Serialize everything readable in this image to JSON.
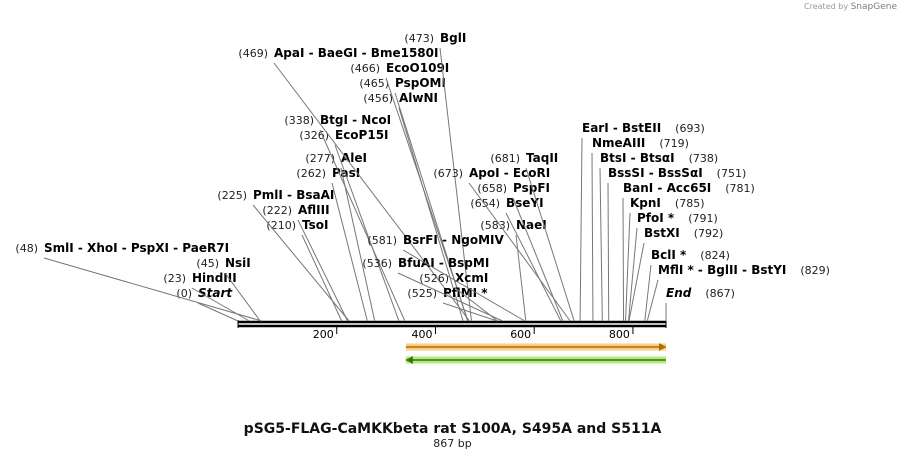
{
  "credit": {
    "prefix": "Created by",
    "brand": "SnapGene"
  },
  "title": "pSG5-FLAG-CaMKKbeta rat S100A, S495A and S511A",
  "length_label": "867 bp",
  "colors": {
    "feature_orange": "#f5a623",
    "feature_orange_edge": "#b06d00",
    "feature_green": "#7ed321",
    "feature_green_edge": "#2f7a00",
    "line": "#000000",
    "leader": "#777777"
  },
  "sequence": {
    "start": 0,
    "end": 867,
    "ticks": [
      200,
      400,
      600,
      800
    ]
  },
  "features": [
    {
      "name": "feature-forward-orange",
      "start": 340,
      "end": 867,
      "direction": "forward",
      "color": "#f5a623"
    },
    {
      "name": "feature-reverse-green",
      "start": 340,
      "end": 867,
      "direction": "reverse",
      "color": "#7ed321"
    }
  ],
  "sites": [
    {
      "pos": "(0)",
      "text": "Start",
      "bp": 0,
      "italic": true
    },
    {
      "pos": "(23)",
      "text": "HindIII",
      "bp": 23
    },
    {
      "pos": "(45)",
      "text": "NsiI",
      "bp": 45
    },
    {
      "pos": "(48)",
      "text": "SmlI  - XhoI  - PspXI  - PaeR7I",
      "bp": 48
    },
    {
      "pos": "(210)",
      "text": "TsoI",
      "bp": 210
    },
    {
      "pos": "(222)",
      "text": "AflIII",
      "bp": 222
    },
    {
      "pos": "(225)",
      "text": "PmlI  - BsaAI",
      "bp": 225
    },
    {
      "pos": "(262)",
      "text": "PasI",
      "bp": 262
    },
    {
      "pos": "(277)",
      "text": "AleI",
      "bp": 277
    },
    {
      "pos": "(326)",
      "text": "EcoP15I",
      "bp": 326
    },
    {
      "pos": "(338)",
      "text": "BtgI  - NcoI",
      "bp": 338
    },
    {
      "pos": "(456)",
      "text": "AlwNI",
      "bp": 456
    },
    {
      "pos": "(465)",
      "text": "PspOMI",
      "bp": 465
    },
    {
      "pos": "(466)",
      "text": "EcoO109I",
      "bp": 466
    },
    {
      "pos": "(469)",
      "text": "ApaI  - BaeGI  - Bme1580I",
      "bp": 469
    },
    {
      "pos": "(473)",
      "text": "BglI",
      "bp": 473
    },
    {
      "pos": "(525)",
      "text": "PflMI *",
      "bp": 525
    },
    {
      "pos": "(526)",
      "text": "XcmI",
      "bp": 526
    },
    {
      "pos": "(536)",
      "text": "BfuAI  - BspMI",
      "bp": 536
    },
    {
      "pos": "(581)",
      "text": "BsrFI  - NgoMIV",
      "bp": 581
    },
    {
      "pos": "(583)",
      "text": "NaeI",
      "bp": 583
    },
    {
      "pos": "(654)",
      "text": "BseYI",
      "bp": 654
    },
    {
      "pos": "(658)",
      "text": "PspFI",
      "bp": 658
    },
    {
      "pos": "(673)",
      "text": "ApoI  - EcoRI",
      "bp": 673
    },
    {
      "pos": "(681)",
      "text": "TaqII",
      "bp": 681
    },
    {
      "pos": "(693)",
      "text": "EarI  - BstEII",
      "bp": 693,
      "pos_right": true
    },
    {
      "pos": "(719)",
      "text": "NmeAIII",
      "bp": 719,
      "pos_right": true
    },
    {
      "pos": "(738)",
      "text": "BtsI  - BtsαI",
      "bp": 738,
      "pos_right": true
    },
    {
      "pos": "(751)",
      "text": "BssSI  - BssSαI",
      "bp": 751,
      "pos_right": true
    },
    {
      "pos": "(781)",
      "text": "BanI  - Acc65I",
      "bp": 781,
      "pos_right": true
    },
    {
      "pos": "(785)",
      "text": "KpnI",
      "bp": 785,
      "pos_right": true
    },
    {
      "pos": "(791)",
      "text": "PfoI *",
      "bp": 791,
      "pos_right": true
    },
    {
      "pos": "(792)",
      "text": "BstXI",
      "bp": 792,
      "pos_right": true
    },
    {
      "pos": "(824)",
      "text": "BclI *",
      "bp": 824,
      "pos_right": true
    },
    {
      "pos": "(829)",
      "text": "MflI * - BglII  - BstYI",
      "bp": 829,
      "pos_right": true
    },
    {
      "pos": "(867)",
      "text": "End",
      "bp": 867,
      "pos_right": true,
      "italic": true
    }
  ]
}
